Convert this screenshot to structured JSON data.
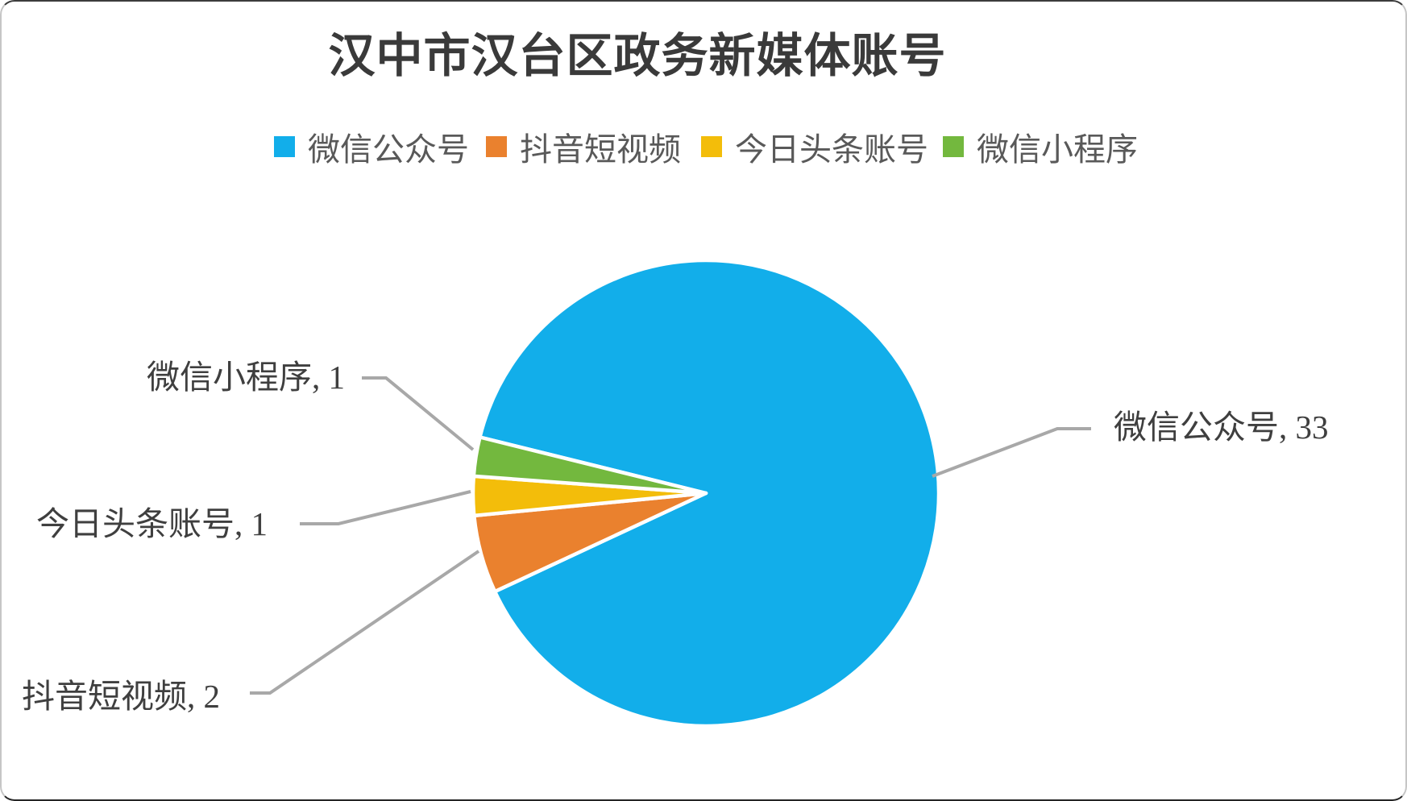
{
  "title": "汉中市汉台区政务新媒体账号",
  "legend": {
    "position": "top",
    "items": [
      {
        "label": "微信公众号",
        "color": "#12AEEA"
      },
      {
        "label": "抖音短视频",
        "color": "#EA812E"
      },
      {
        "label": "今日头条账号",
        "color": "#F3BD0A"
      },
      {
        "label": "微信小程序",
        "color": "#73B83E"
      }
    ]
  },
  "chart_data": {
    "type": "pie",
    "title": "汉中市汉台区政务新媒体账号",
    "categories": [
      "微信公众号",
      "抖音短视频",
      "今日头条账号",
      "微信小程序"
    ],
    "values": [
      33,
      2,
      1,
      1
    ],
    "total": 37,
    "colors": [
      "#12AEEA",
      "#EA812E",
      "#F3BD0A",
      "#73B83E"
    ],
    "rotation_deg": 283.92,
    "slice_border_color": "#FFFFFF",
    "leader_line_color": "#A8A8A8",
    "legend_position": "top",
    "data_labels": [
      "微信公众号, 33",
      "抖音短视频, 2",
      "今日头条账号, 1",
      "微信小程序, 1"
    ]
  },
  "labels": {
    "wechat_official": "微信公众号, 33",
    "douyin": "抖音短视频, 2",
    "toutiao": "今日头条账号, 1",
    "miniprogram": "微信小程序, 1"
  }
}
